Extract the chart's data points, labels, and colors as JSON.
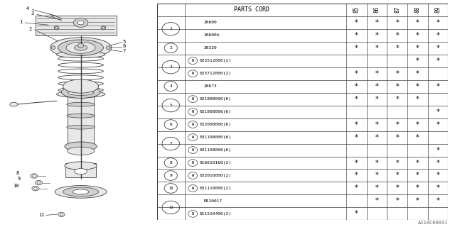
{
  "watermark": "A210C00041",
  "table_rows": [
    {
      "item": "1",
      "part": "20600",
      "prefix": "",
      "marks": [
        1,
        1,
        1,
        1,
        1
      ]
    },
    {
      "item": "",
      "part": "20600A",
      "prefix": "",
      "marks": [
        1,
        1,
        1,
        1,
        1
      ]
    },
    {
      "item": "2",
      "part": "20320",
      "prefix": "",
      "marks": [
        1,
        1,
        1,
        1,
        1
      ]
    },
    {
      "item": "3",
      "part": "023512000(2)",
      "prefix": "N",
      "marks": [
        0,
        0,
        0,
        1,
        1
      ]
    },
    {
      "item": "",
      "part": "023712000(2)",
      "prefix": "N",
      "marks": [
        1,
        1,
        1,
        1,
        0
      ]
    },
    {
      "item": "4",
      "part": "20673",
      "prefix": "",
      "marks": [
        1,
        1,
        1,
        1,
        1
      ]
    },
    {
      "item": "5",
      "part": "021808000(6)",
      "prefix": "N",
      "marks": [
        1,
        1,
        1,
        1,
        0
      ]
    },
    {
      "item": "",
      "part": "021808006(6)",
      "prefix": "N",
      "marks": [
        0,
        0,
        0,
        0,
        1
      ]
    },
    {
      "item": "6",
      "part": "032008000(6)",
      "prefix": "W",
      "marks": [
        1,
        1,
        1,
        1,
        1
      ]
    },
    {
      "item": "7",
      "part": "031108000(6)",
      "prefix": "W",
      "marks": [
        1,
        1,
        1,
        1,
        0
      ]
    },
    {
      "item": "",
      "part": "031108006(6)",
      "prefix": "W",
      "marks": [
        0,
        0,
        0,
        0,
        1
      ]
    },
    {
      "item": "8",
      "part": "016610160(2)",
      "prefix": "B",
      "marks": [
        1,
        1,
        1,
        1,
        1
      ]
    },
    {
      "item": "9",
      "part": "032010000(2)",
      "prefix": "W",
      "marks": [
        1,
        1,
        1,
        1,
        1
      ]
    },
    {
      "item": "10",
      "part": "031110000(2)",
      "prefix": "W",
      "marks": [
        1,
        1,
        1,
        1,
        1
      ]
    },
    {
      "item": "11",
      "part": "M120017",
      "prefix": "",
      "marks": [
        0,
        1,
        1,
        1,
        1
      ]
    },
    {
      "item": "",
      "part": "011510400(2)",
      "prefix": "B",
      "marks": [
        1,
        0,
        0,
        0,
        0
      ]
    }
  ],
  "years": [
    "85",
    "86",
    "87",
    "88",
    "89"
  ],
  "bg_color": "#ffffff",
  "line_color": "#404040",
  "text_color": "#000000"
}
